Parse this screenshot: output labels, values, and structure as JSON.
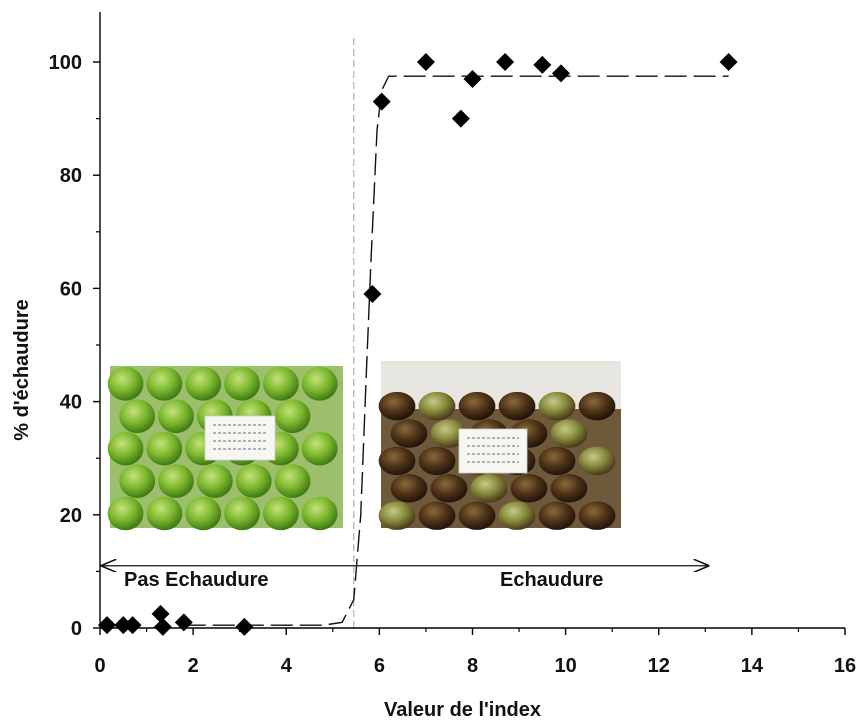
{
  "chart_data": {
    "type": "scatter",
    "title": "",
    "xlabel": "Valeur de l'index",
    "ylabel": "% d'échaudure",
    "xlim": [
      0,
      16
    ],
    "ylim": [
      0,
      100
    ],
    "x_ticks": [
      "0",
      "2",
      "4",
      "6",
      "8",
      "10",
      "12",
      "14",
      "16"
    ],
    "y_ticks": [
      "0",
      "20",
      "40",
      "60",
      "80",
      "100"
    ],
    "grid": false,
    "points": [
      {
        "x": 0.15,
        "y": 0.5
      },
      {
        "x": 0.5,
        "y": 0.5
      },
      {
        "x": 0.7,
        "y": 0.5
      },
      {
        "x": 1.3,
        "y": 2.5
      },
      {
        "x": 1.35,
        "y": 0.2
      },
      {
        "x": 1.8,
        "y": 1
      },
      {
        "x": 3.1,
        "y": 0.2
      },
      {
        "x": 5.85,
        "y": 59
      },
      {
        "x": 6.05,
        "y": 93
      },
      {
        "x": 7.0,
        "y": 100
      },
      {
        "x": 7.75,
        "y": 90
      },
      {
        "x": 8.0,
        "y": 97
      },
      {
        "x": 8.7,
        "y": 100
      },
      {
        "x": 9.5,
        "y": 99.5
      },
      {
        "x": 9.9,
        "y": 98
      },
      {
        "x": 13.5,
        "y": 100
      }
    ],
    "fit_curve": {
      "style": "dashed",
      "points": [
        [
          1.8,
          0.5
        ],
        [
          4.8,
          0.5
        ],
        [
          5.2,
          1
        ],
        [
          5.45,
          5
        ],
        [
          5.6,
          20
        ],
        [
          5.72,
          45
        ],
        [
          5.82,
          65
        ],
        [
          5.95,
          88
        ],
        [
          6.05,
          95
        ],
        [
          6.2,
          97.5
        ],
        [
          13.5,
          97.5
        ]
      ]
    },
    "threshold_x": 5.45,
    "zones": {
      "left_label": "Pas Echaudure",
      "right_label": "Echaudure"
    },
    "photos": [
      {
        "name": "green-apples-photo",
        "depicts": "healthy green apples with label card"
      },
      {
        "name": "scalded-apples-photo",
        "depicts": "apples with brown scald and label card"
      }
    ],
    "colors": {
      "marker": "#000000",
      "axis": "#000000",
      "threshold": "#b0b0b0",
      "green_apple": "#6fae2a",
      "scald_brown": "#4a2e1c"
    }
  }
}
